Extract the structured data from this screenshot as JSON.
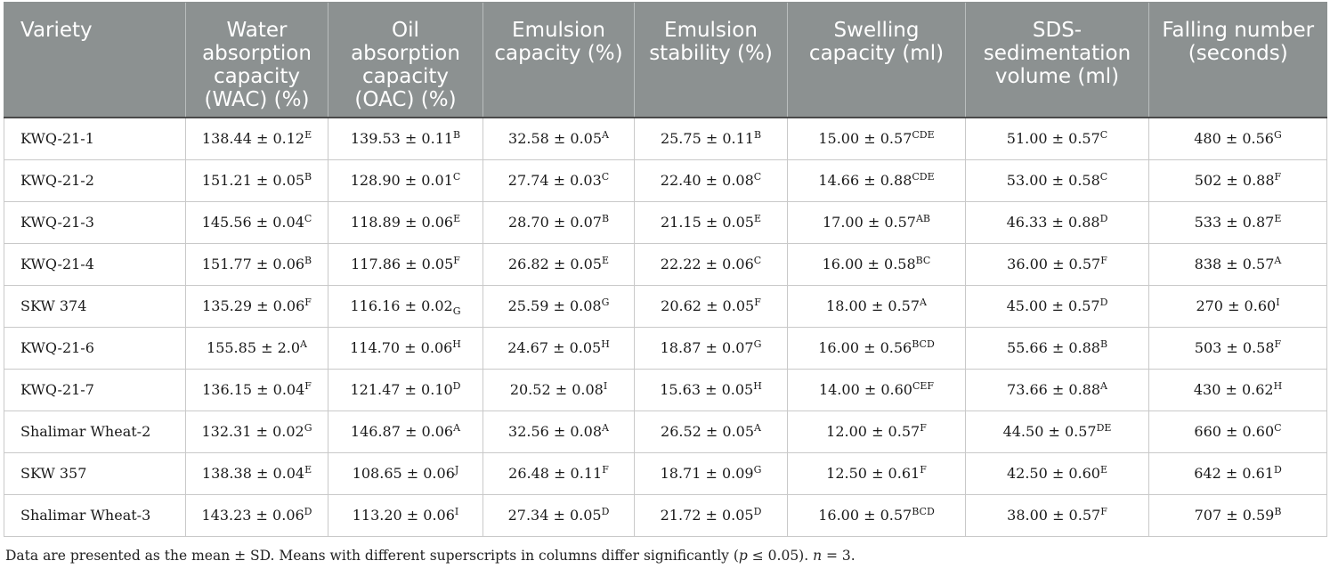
{
  "table": {
    "headers": [
      "Variety",
      "Water absorption capacity (WAC) (%)",
      "Oil absorption capacity (OAC) (%)",
      "Emulsion capacity (%)",
      "Emulsion stability (%)",
      "Swelling capacity (ml)",
      "SDS-sedimentation volume (ml)",
      "Falling number (seconds)"
    ],
    "rows": [
      {
        "variety": "KWQ-21-1",
        "cells": [
          {
            "v": "138.44 ± 0.12",
            "s": "E"
          },
          {
            "v": "139.53 ± 0.11",
            "s": "B"
          },
          {
            "v": "32.58 ± 0.05",
            "s": "A"
          },
          {
            "v": "25.75 ± 0.11",
            "s": "B"
          },
          {
            "v": "15.00 ± 0.57",
            "s": "CDE"
          },
          {
            "v": "51.00 ± 0.57",
            "s": "C"
          },
          {
            "v": "480 ± 0.56",
            "s": "G"
          }
        ]
      },
      {
        "variety": "KWQ-21-2",
        "cells": [
          {
            "v": "151.21 ± 0.05",
            "s": "B"
          },
          {
            "v": "128.90 ± 0.01",
            "s": "C"
          },
          {
            "v": "27.74 ± 0.03",
            "s": "C"
          },
          {
            "v": "22.40 ± 0.08",
            "s": "C"
          },
          {
            "v": "14.66 ± 0.88",
            "s": "CDE"
          },
          {
            "v": "53.00 ± 0.58",
            "s": "C"
          },
          {
            "v": "502 ± 0.88",
            "s": "F"
          }
        ]
      },
      {
        "variety": "KWQ-21-3",
        "cells": [
          {
            "v": "145.56 ± 0.04",
            "s": "C"
          },
          {
            "v": "118.89 ± 0.06",
            "s": "E"
          },
          {
            "v": "28.70 ± 0.07",
            "s": "B"
          },
          {
            "v": "21.15 ± 0.05",
            "s": "E"
          },
          {
            "v": "17.00 ± 0.57",
            "s": "AB"
          },
          {
            "v": "46.33 ± 0.88",
            "s": "D"
          },
          {
            "v": "533 ± 0.87",
            "s": "E"
          }
        ]
      },
      {
        "variety": "KWQ-21-4",
        "cells": [
          {
            "v": "151.77 ± 0.06",
            "s": "B"
          },
          {
            "v": "117.86 ± 0.05",
            "s": "F"
          },
          {
            "v": "26.82 ± 0.05",
            "s": "E"
          },
          {
            "v": "22.22 ± 0.06",
            "s": "C"
          },
          {
            "v": "16.00 ± 0.58",
            "s": "BC"
          },
          {
            "v": "36.00 ± 0.57",
            "s": "F"
          },
          {
            "v": "838 ± 0.57",
            "s": "A"
          }
        ]
      },
      {
        "variety": "SKW 374",
        "cells": [
          {
            "v": "135.29 ± 0.06",
            "s": "F"
          },
          {
            "v": "116.16 ± 0.02",
            "sub": "G"
          },
          {
            "v": "25.59 ± 0.08",
            "s": "G"
          },
          {
            "v": "20.62 ± 0.05",
            "s": "F"
          },
          {
            "v": "18.00 ± 0.57",
            "s": "A"
          },
          {
            "v": "45.00 ± 0.57",
            "s": "D"
          },
          {
            "v": "270 ± 0.60",
            "s": "I"
          }
        ]
      },
      {
        "variety": "KWQ-21-6",
        "cells": [
          {
            "v": "155.85 ± 2.0",
            "s": "A"
          },
          {
            "v": "114.70 ± 0.06",
            "s": "H"
          },
          {
            "v": "24.67 ± 0.05",
            "s": "H"
          },
          {
            "v": "18.87 ± 0.07",
            "s": "G"
          },
          {
            "v": "16.00 ± 0.56",
            "s": "BCD"
          },
          {
            "v": "55.66 ± 0.88",
            "s": "B"
          },
          {
            "v": "503 ± 0.58",
            "s": "F"
          }
        ]
      },
      {
        "variety": "KWQ-21-7",
        "cells": [
          {
            "v": "136.15 ± 0.04",
            "s": "F"
          },
          {
            "v": "121.47 ± 0.10",
            "s": "D"
          },
          {
            "v": "20.52 ± 0.08",
            "s": "I"
          },
          {
            "v": "15.63 ± 0.05",
            "s": "H"
          },
          {
            "v": "14.00 ± 0.60",
            "s": "CEF"
          },
          {
            "v": "73.66 ± 0.88",
            "s": "A"
          },
          {
            "v": "430 ± 0.62",
            "s": "H"
          }
        ]
      },
      {
        "variety": "Shalimar Wheat-2",
        "cells": [
          {
            "v": "132.31 ± 0.02",
            "s": "G"
          },
          {
            "v": "146.87 ± 0.06",
            "s": "A"
          },
          {
            "v": "32.56 ± 0.08",
            "s": "A"
          },
          {
            "v": "26.52 ± 0.05",
            "s": "A"
          },
          {
            "v": "12.00 ± 0.57",
            "s": "F"
          },
          {
            "v": "44.50 ± 0.57",
            "s": "DE"
          },
          {
            "v": "660 ± 0.60",
            "s": "C"
          }
        ]
      },
      {
        "variety": "SKW 357",
        "cells": [
          {
            "v": "138.38 ± 0.04",
            "s": "E"
          },
          {
            "v": "108.65 ± 0.06",
            "s": "J"
          },
          {
            "v": "26.48 ± 0.11",
            "s": "F"
          },
          {
            "v": "18.71 ± 0.09",
            "s": "G"
          },
          {
            "v": "12.50 ± 0.61",
            "s": "F"
          },
          {
            "v": "42.50 ± 0.60",
            "s": "E"
          },
          {
            "v": "642 ± 0.61",
            "s": "D"
          }
        ]
      },
      {
        "variety": "Shalimar Wheat-3",
        "cells": [
          {
            "v": "143.23 ± 0.06",
            "s": "D"
          },
          {
            "v": "113.20 ± 0.06",
            "s": "I"
          },
          {
            "v": "27.34 ± 0.05",
            "s": "D"
          },
          {
            "v": "21.72 ± 0.05",
            "s": "D"
          },
          {
            "v": "16.00 ± 0.57",
            "s": "BCD"
          },
          {
            "v": "38.00 ± 0.57",
            "s": "F"
          },
          {
            "v": "707 ± 0.59",
            "s": "B"
          }
        ]
      }
    ]
  },
  "footnote": {
    "text_before": "Data are presented as the mean ± SD. Means with different superscripts in columns differ significantly (",
    "p_var": "p",
    "p_rest": " ≤ 0.05). ",
    "n_var": "n",
    "n_rest": " = 3."
  }
}
